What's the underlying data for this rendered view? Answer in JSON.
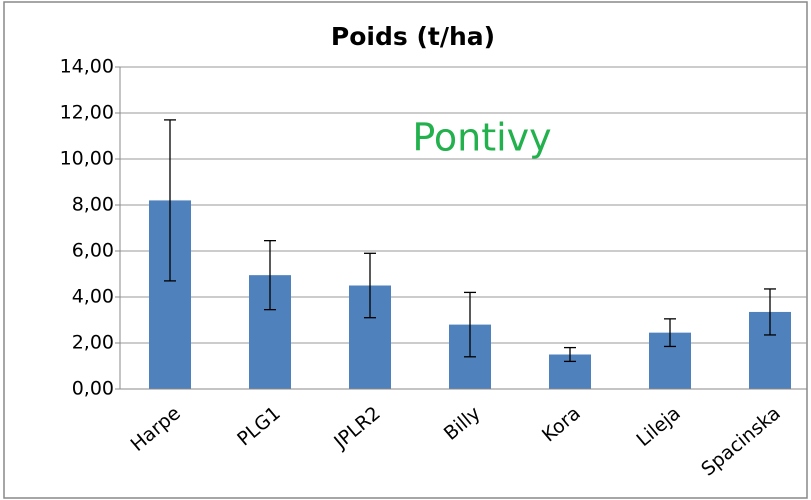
{
  "chart_data": {
    "type": "bar",
    "title": "Poids (t/ha)",
    "annotation": "Pontivy",
    "categories": [
      "Harpe",
      "PLG1",
      "JPLR2",
      "Billy",
      "Kora",
      "Lileja",
      "Spacinska"
    ],
    "values": [
      8.2,
      4.95,
      4.5,
      2.8,
      1.5,
      2.45,
      3.35
    ],
    "errors": [
      3.5,
      1.5,
      1.4,
      1.4,
      0.3,
      0.6,
      1.0
    ],
    "color": "#4f81bd",
    "ylim": [
      0,
      14
    ],
    "yticks": [
      {
        "value": 0,
        "label": "0,00"
      },
      {
        "value": 2,
        "label": "2,00"
      },
      {
        "value": 4,
        "label": "4,00"
      },
      {
        "value": 6,
        "label": "6,00"
      },
      {
        "value": 8,
        "label": "8,00"
      },
      {
        "value": 10,
        "label": "10,00"
      },
      {
        "value": 12,
        "label": "12,00"
      },
      {
        "value": 14,
        "label": "14,00"
      }
    ],
    "grid": true
  }
}
